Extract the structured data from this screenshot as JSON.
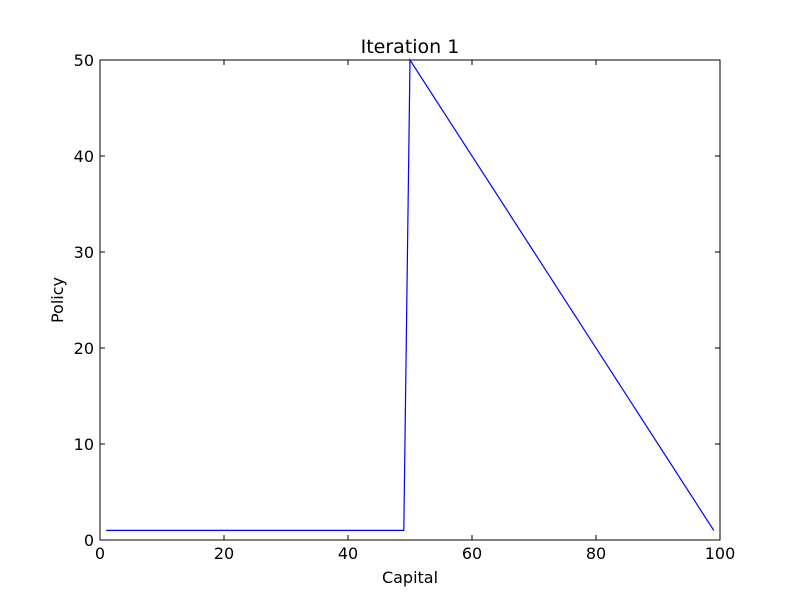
{
  "chart_data": {
    "type": "line",
    "title": "Iteration 1",
    "xlabel": "Capital",
    "ylabel": "Policy",
    "xlim": [
      0,
      100
    ],
    "ylim": [
      0,
      50
    ],
    "xticks": [
      0,
      20,
      40,
      60,
      80,
      100
    ],
    "yticks": [
      0,
      10,
      20,
      30,
      40,
      50
    ],
    "grid": false,
    "series": [
      {
        "color": "#0000ff",
        "x": [
          1,
          49,
          50,
          99
        ],
        "y": [
          1,
          1,
          50,
          1
        ]
      }
    ]
  }
}
